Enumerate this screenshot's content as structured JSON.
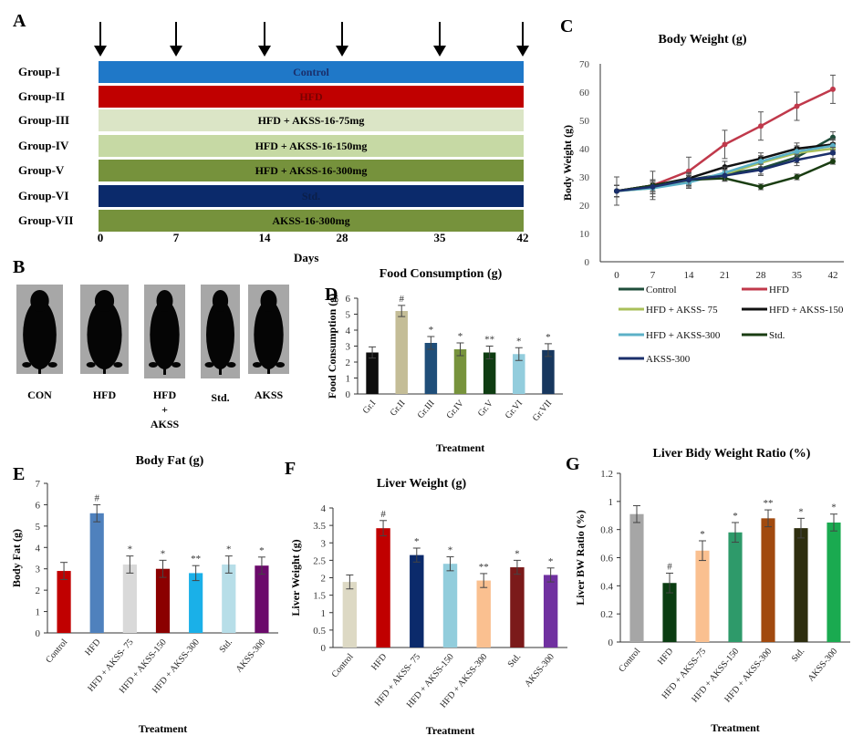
{
  "panelA": {
    "letter": "A",
    "groups": [
      {
        "label": "Group-I",
        "bar_text": "Control",
        "color": "#1f78c8",
        "text_color": "#1a2f6b"
      },
      {
        "label": "Group-II",
        "bar_text": "HFD",
        "color": "#c00000",
        "text_color": "#7a0000"
      },
      {
        "label": "Group-III",
        "bar_text": "HFD + AKSS-16-75mg",
        "color": "#dbe5c6",
        "text_color": "#000000"
      },
      {
        "label": "Group-IV",
        "bar_text": "HFD + AKSS-16-150mg",
        "color": "#c6d9a4",
        "text_color": "#000000"
      },
      {
        "label": "Group-V",
        "bar_text": "HFD + AKSS-16-300mg",
        "color": "#76923c",
        "text_color": "#000000"
      },
      {
        "label": "Group-VI",
        "bar_text": "Std.",
        "color": "#0b2a6b",
        "text_color": "#0b1f4a"
      },
      {
        "label": "Group-VII",
        "bar_text": "AKSS-16-300mg",
        "color": "#76923c",
        "text_color": "#000000"
      }
    ],
    "days": [
      "0",
      "7",
      "14",
      "28",
      "35",
      "42"
    ],
    "xlabel": "Days"
  },
  "panelB": {
    "letter": "B",
    "mice": [
      {
        "label": "CON"
      },
      {
        "label": "HFD"
      },
      {
        "label": "HFD\n+\nAKSS"
      },
      {
        "label": "Std."
      },
      {
        "label": "AKSS"
      }
    ]
  },
  "chart_data": [
    {
      "id": "C",
      "type": "line",
      "letter": "C",
      "title": "Body Weight (g)",
      "xlabel": "",
      "ylabel": "Body Weight (g)",
      "x": [
        0,
        7,
        14,
        21,
        28,
        35,
        42
      ],
      "ylim": [
        0,
        70
      ],
      "yticks": [
        0,
        10,
        20,
        30,
        40,
        50,
        60,
        70
      ],
      "legend": "bottom",
      "series": [
        {
          "name": "Control",
          "color": "#1e4d3a",
          "values": [
            25,
            27,
            29,
            31,
            33,
            37,
            44
          ],
          "err": [
            5,
            5,
            3,
            2,
            2,
            2,
            2
          ]
        },
        {
          "name": "HFD",
          "color": "#c0394b",
          "values": [
            25,
            27,
            32,
            41.5,
            48,
            55,
            61
          ],
          "err": [
            2,
            2,
            5,
            5,
            5,
            5,
            5
          ]
        },
        {
          "name": "HFD + AKSS- 75",
          "color": "#a9bf5a",
          "values": [
            25,
            26,
            28.5,
            31,
            35,
            38.5,
            40
          ],
          "err": [
            2,
            2,
            2,
            2,
            2,
            2,
            2
          ]
        },
        {
          "name": "HFD + AKSS-150",
          "color": "#111111",
          "values": [
            25,
            27,
            29.5,
            33.5,
            36.5,
            40,
            41.5
          ],
          "err": [
            2,
            2,
            2,
            2,
            2,
            2,
            2
          ]
        },
        {
          "name": "HFD + AKSS-300",
          "color": "#5bb0c7",
          "values": [
            25,
            26,
            28,
            31.5,
            35.5,
            39,
            41
          ],
          "err": [
            2,
            3,
            2,
            2,
            2,
            2,
            2
          ]
        },
        {
          "name": "Std.",
          "color": "#1a3d12",
          "values": [
            25,
            27,
            29,
            29.5,
            26.5,
            30,
            35.5
          ],
          "err": [
            2,
            2,
            2,
            1,
            1,
            1,
            1
          ]
        },
        {
          "name": "AKSS-300",
          "color": "#1b2f6b",
          "values": [
            25,
            26.5,
            29,
            30.5,
            32.5,
            36,
            38.5
          ],
          "err": [
            2,
            2,
            2,
            2,
            2,
            2,
            2
          ]
        }
      ]
    },
    {
      "id": "D",
      "type": "bar",
      "letter": "D",
      "title": "Food Consumption (g)",
      "xlabel": "Treatment",
      "ylabel": "Food Consumption (g)",
      "categories": [
        "Gr.I",
        "Gr.II",
        "Gr.III",
        "Gr.IV",
        "Gr.V",
        "Gr.VI",
        "Gr.VII"
      ],
      "values": [
        2.6,
        5.2,
        3.2,
        2.8,
        2.6,
        2.5,
        2.75
      ],
      "err": [
        0.35,
        0.35,
        0.4,
        0.4,
        0.4,
        0.4,
        0.4
      ],
      "annotations": [
        "",
        "#",
        "*",
        "*",
        "**",
        "*",
        "*"
      ],
      "colors": [
        "#0d0d0d",
        "#c4bd97",
        "#1f4e79",
        "#77933c",
        "#0f3d12",
        "#93cddd",
        "#17375e"
      ],
      "ylim": [
        0,
        6
      ],
      "yticks": [
        0,
        1,
        2,
        3,
        4,
        5,
        6
      ]
    },
    {
      "id": "E",
      "type": "bar",
      "letter": "E",
      "title": "Body Fat (g)",
      "xlabel": "Treatment",
      "ylabel": "Body Fat (g)",
      "categories": [
        "Control",
        "HFD",
        "HFD + AKSS- 75",
        "HFD + AKSS-150",
        "HFD + AKSS-300",
        "Std.",
        "AKSS-300"
      ],
      "values": [
        2.9,
        5.6,
        3.2,
        3.0,
        2.8,
        3.2,
        3.15
      ],
      "err": [
        0.4,
        0.4,
        0.4,
        0.4,
        0.35,
        0.4,
        0.4
      ],
      "annotations": [
        "",
        "#",
        "*",
        "*",
        "**",
        "*",
        "*"
      ],
      "colors": [
        "#c00000",
        "#4f81bd",
        "#d9d9d9",
        "#8b0000",
        "#1ab0e8",
        "#b7dee8",
        "#6b0a6b"
      ],
      "ylim": [
        0,
        7
      ],
      "yticks": [
        0,
        1,
        2,
        3,
        4,
        5,
        6,
        7
      ]
    },
    {
      "id": "F",
      "type": "bar",
      "letter": "F",
      "title": "Liver Weight (g)",
      "xlabel": "Treatment",
      "ylabel": "Liver Weight (g)",
      "categories": [
        "Control",
        "HFD",
        "HFD + AKSS- 75",
        "HFD + AKSS-150",
        "HFD + AKSS-300",
        "Std.",
        "AKSS-300"
      ],
      "values": [
        1.88,
        3.42,
        2.65,
        2.4,
        1.92,
        2.3,
        2.08
      ],
      "err": [
        0.2,
        0.22,
        0.2,
        0.2,
        0.2,
        0.2,
        0.2
      ],
      "annotations": [
        "",
        "#",
        "*",
        "*",
        "**",
        "*",
        "*"
      ],
      "colors": [
        "#ddd9c4",
        "#c00000",
        "#0b2a6b",
        "#92cddc",
        "#fac090",
        "#7b1a1a",
        "#7030a0"
      ],
      "ylim": [
        0,
        4
      ],
      "yticks": [
        0,
        0.5,
        1,
        1.5,
        2,
        2.5,
        3,
        3.5,
        4
      ]
    },
    {
      "id": "G",
      "type": "bar",
      "letter": "G",
      "title": "Liver Bidy Weight Ratio (%)",
      "xlabel": "Treatment",
      "ylabel": "Liver BW Ratio (%)",
      "categories": [
        "Control",
        "HFD",
        "HFD + AKSS-75",
        "HFD + AKSS-150",
        "HFD + AKSS-300",
        "Std.",
        "AKSS-300"
      ],
      "values": [
        0.91,
        0.42,
        0.65,
        0.78,
        0.88,
        0.81,
        0.85
      ],
      "err": [
        0.06,
        0.07,
        0.07,
        0.07,
        0.06,
        0.07,
        0.06
      ],
      "annotations": [
        "",
        "#",
        "*",
        "*",
        "**",
        "*",
        "*"
      ],
      "colors": [
        "#a6a6a6",
        "#0b3d12",
        "#fac090",
        "#2e9a6a",
        "#a14a0f",
        "#2e2e0f",
        "#1aaa50"
      ],
      "ylim": [
        0,
        1.2
      ],
      "yticks": [
        0,
        0.2,
        0.4,
        0.6,
        0.8,
        1,
        1.2
      ]
    }
  ]
}
